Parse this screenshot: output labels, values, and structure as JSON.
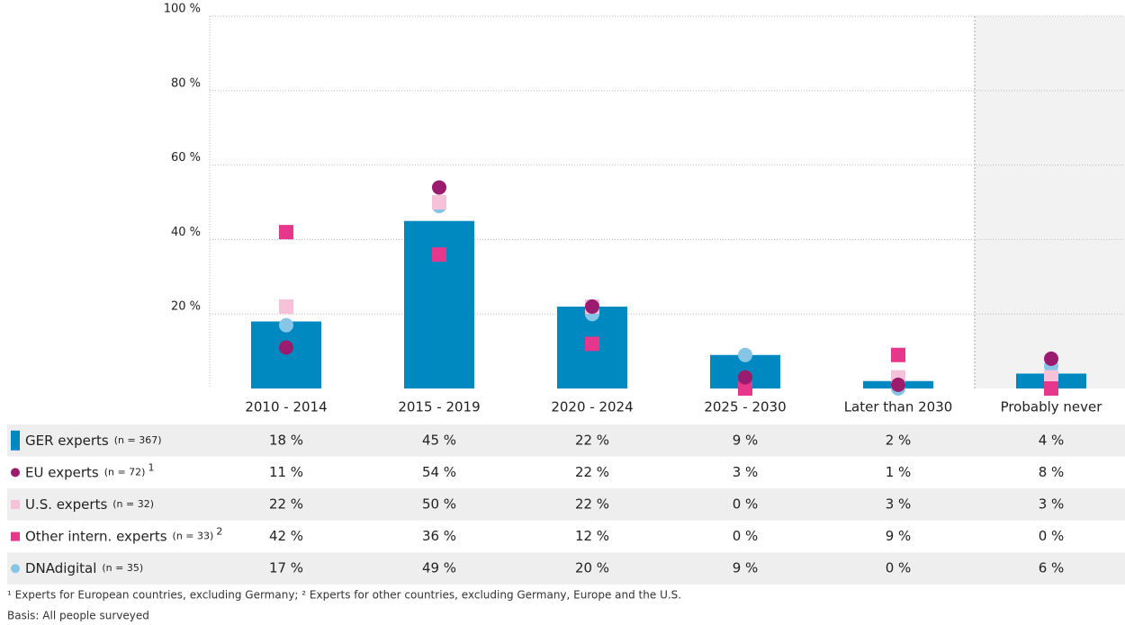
{
  "chart_data": {
    "type": "bar",
    "categories": [
      "2010 - 2014",
      "2015 - 2019",
      "2020 - 2024",
      "2025 - 2030",
      "Later than 2030",
      "Probably never"
    ],
    "ylim": [
      0,
      100
    ],
    "yticks": [
      {
        "value": 20,
        "label": "20 %"
      },
      {
        "value": 40,
        "label": "40 %"
      },
      {
        "value": 60,
        "label": "60 %"
      },
      {
        "value": 80,
        "label": "80 %"
      },
      {
        "value": 100,
        "label": "100 %"
      }
    ],
    "grid": true,
    "series": [
      {
        "name": "GER experts",
        "note": "(n = 367)",
        "marker": "bar",
        "color": "#0088c0",
        "values": [
          18,
          45,
          22,
          9,
          2,
          4
        ],
        "value_labels": [
          "18 %",
          "45 %",
          "22 %",
          "9 %",
          "2 %",
          "4 %"
        ]
      },
      {
        "name": "EU experts",
        "note": "(n = 72)",
        "footnote": "1",
        "marker": "circle",
        "color": "#9b1b6e",
        "values": [
          11,
          54,
          22,
          3,
          1,
          8
        ],
        "value_labels": [
          "11 %",
          "54 %",
          "22 %",
          "3 %",
          "1 %",
          "8 %"
        ]
      },
      {
        "name": "U.S. experts",
        "note": "(n = 32)",
        "marker": "square",
        "color": "#f5c2d9",
        "values": [
          22,
          50,
          22,
          0,
          3,
          3
        ],
        "value_labels": [
          "22 %",
          "50 %",
          "22 %",
          "0 %",
          "3 %",
          "3 %"
        ]
      },
      {
        "name": "Other intern. experts",
        "note": "(n = 33)",
        "footnote": "2",
        "marker": "square",
        "color": "#e6378c",
        "values": [
          42,
          36,
          12,
          0,
          9,
          0
        ],
        "value_labels": [
          "42 %",
          "36 %",
          "12 %",
          "0 %",
          "9 %",
          "0 %"
        ]
      },
      {
        "name": "DNAdigital",
        "note": "(n = 35)",
        "marker": "circle",
        "color": "#86c5e6",
        "values": [
          17,
          49,
          20,
          9,
          0,
          6
        ],
        "value_labels": [
          "17 %",
          "49 %",
          "20 %",
          "9 %",
          "0 %",
          "6 %"
        ]
      }
    ],
    "footnotes": [
      "¹ Experts for European countries, excluding Germany; ² Experts for other countries, excluding Germany, Europe and the U.S.",
      "Basis: All people surveyed"
    ]
  }
}
